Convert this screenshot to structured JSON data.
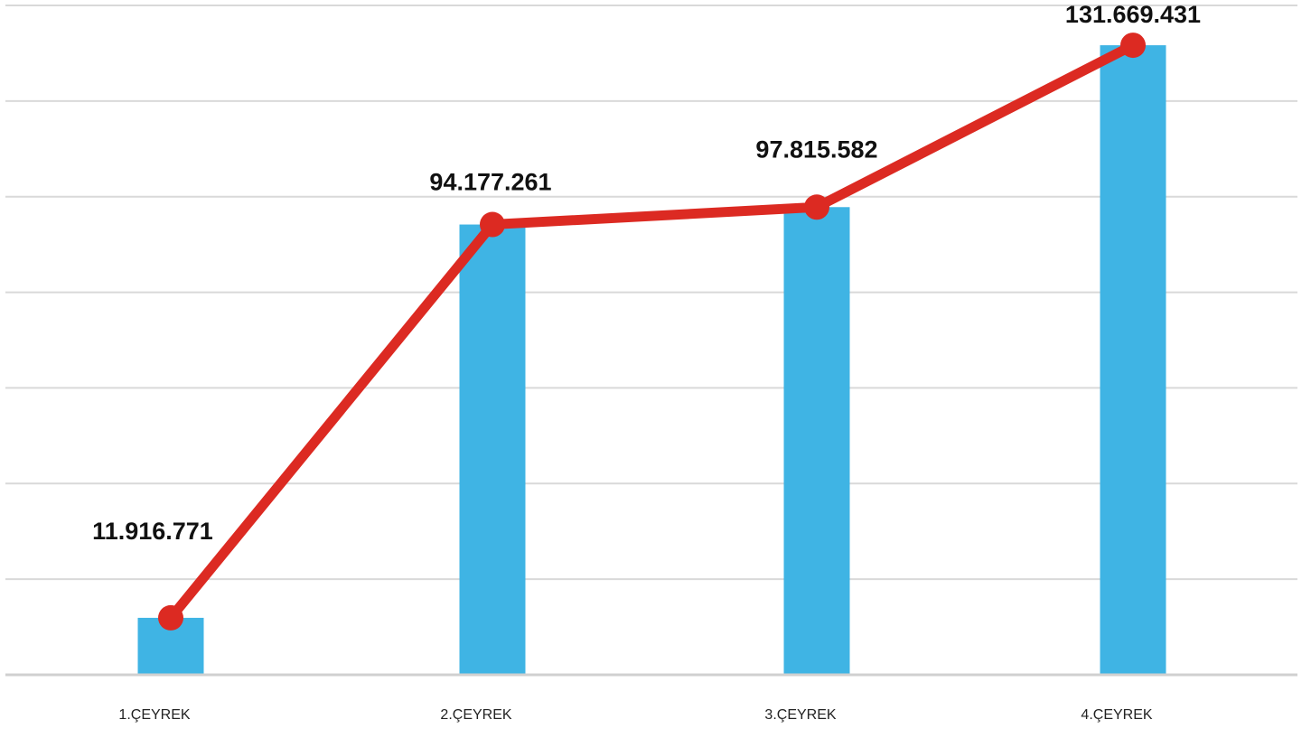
{
  "chart_data": {
    "type": "bar",
    "categories": [
      "1.ÇEYREK",
      "2.ÇEYREK",
      "3.ÇEYREK",
      "4.ÇEYREK"
    ],
    "series": [
      {
        "type": "bar",
        "values": [
          11916771,
          94177261,
          97815582,
          131669431
        ],
        "color": "#3fb4e4"
      },
      {
        "type": "line",
        "values": [
          11916771,
          94177261,
          97815582,
          131669431
        ],
        "color": "#dc2a22"
      }
    ],
    "data_labels": [
      "11.916.771",
      "94.177.261",
      "97.815.582",
      "131.669.431"
    ],
    "ylim": [
      0,
      140000000
    ],
    "grid": true,
    "legend": "none",
    "title": "",
    "xlabel": "",
    "ylabel": ""
  }
}
